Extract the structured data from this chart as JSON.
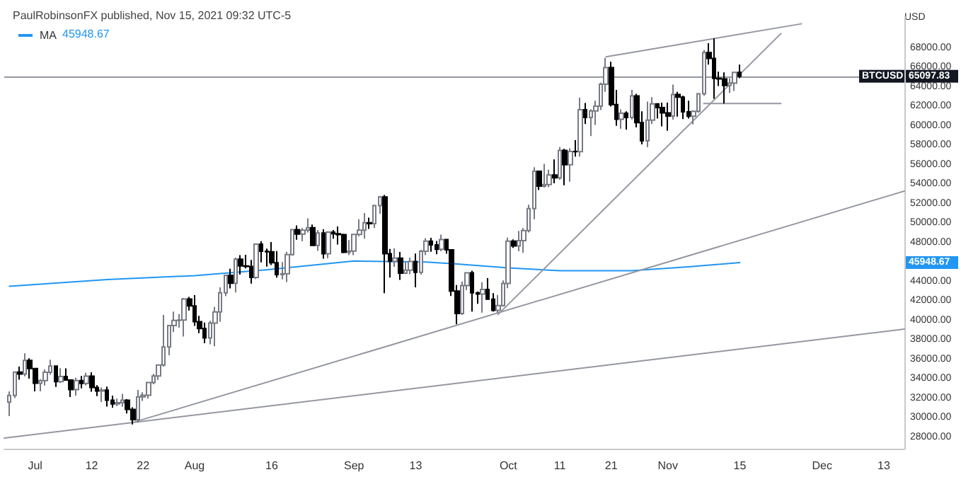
{
  "chart_data": {
    "type": "candlestick",
    "title": "PaulRobinsonFX published, Nov 15, 2021 09:32 UTC-5",
    "ylabel": "USD",
    "colors": [
      "#ffffff",
      "#ffffff",
      "#000000",
      "#ffffff",
      "#000000",
      "#000000",
      "#ffffff",
      "#ffffff",
      "#ffffff",
      "#000000",
      "#ffffff",
      "#000000",
      "#000000",
      "#ffffff",
      "#000000",
      "#ffffff",
      "#000000",
      "#000000",
      "#ffffff",
      "#000000",
      "#000000",
      "#ffffff",
      "#ffffff",
      "#000000",
      "#000000",
      "#ffffff",
      "#ffffff",
      "#ffffff",
      "#ffffff",
      "#ffffff",
      "#ffffff",
      "#ffffff",
      "#ffffff",
      "#ffffff",
      "#ffffff",
      "#000000",
      "#000000",
      "#000000",
      "#000000",
      "#ffffff",
      "#ffffff",
      "#ffffff",
      "#ffffff",
      "#000000",
      "#ffffff",
      "#000000",
      "#000000",
      "#000000",
      "#ffffff",
      "#000000",
      "#000000",
      "#000000",
      "#000000",
      "#ffffff",
      "#ffffff",
      "#ffffff",
      "#000000",
      "#ffffff",
      "#ffffff",
      "#000000",
      "#ffffff",
      "#000000",
      "#ffffff",
      "#000000",
      "#000000",
      "#000000",
      "#ffffff",
      "#ffffff",
      "#ffffff",
      "#ffffff",
      "#000000",
      "#ffffff",
      "#ffffff",
      "#000000",
      "#000000",
      "#ffffff",
      "#000000",
      "#ffffff",
      "#ffffff",
      "#000000",
      "#ffffff",
      "#ffffff",
      "#000000",
      "#000000",
      "#ffffff",
      "#000000",
      "#000000",
      "#000000",
      "#ffffff",
      "#ffffff",
      "#000000",
      "#000000",
      "#ffffff",
      "#000000",
      "#000000",
      "#ffffff",
      "#ffffff",
      "#ffffff",
      "#000000",
      "#ffffff",
      "#ffffff",
      "#ffffff",
      "#ffffff",
      "#000000",
      "#ffffff",
      "#ffffff",
      "#000000",
      "#ffffff",
      "#000000",
      "#ffffff",
      "#000000",
      "#ffffff",
      "#000000",
      "#ffffff",
      "#ffffff",
      "#ffffff",
      "#ffffff",
      "#000000",
      "#000000",
      "#ffffff",
      "#000000",
      "#ffffff",
      "#000000",
      "#000000",
      "#ffffff",
      "#ffffff",
      "#000000",
      "#000000",
      "#000000",
      "#ffffff",
      "#000000",
      "#000000",
      "#000000",
      "#ffffff",
      "#ffffff",
      "#ffffff",
      "#000000",
      "#000000",
      "#000000",
      "#000000",
      "#ffffff",
      "#ffffff",
      "#000000"
    ],
    "x": [
      "2021-06-26",
      "2021-06-27",
      "2021-06-28",
      "2021-06-29",
      "2021-06-30",
      "2021-07-01",
      "2021-07-02",
      "2021-07-03",
      "2021-07-04",
      "2021-07-05",
      "2021-07-06",
      "2021-07-07",
      "2021-07-08",
      "2021-07-09",
      "2021-07-10",
      "2021-07-11",
      "2021-07-12",
      "2021-07-13",
      "2021-07-14",
      "2021-07-15",
      "2021-07-16",
      "2021-07-17",
      "2021-07-18",
      "2021-07-19",
      "2021-07-20",
      "2021-07-21",
      "2021-07-22",
      "2021-07-23",
      "2021-07-24",
      "2021-07-25",
      "2021-07-26",
      "2021-07-27",
      "2021-07-28",
      "2021-07-29",
      "2021-07-30",
      "2021-07-31",
      "2021-08-01",
      "2021-08-02",
      "2021-08-03",
      "2021-08-04",
      "2021-08-05",
      "2021-08-06",
      "2021-08-07",
      "2021-08-08",
      "2021-08-09",
      "2021-08-10",
      "2021-08-11",
      "2021-08-12",
      "2021-08-13",
      "2021-08-14",
      "2021-08-15",
      "2021-08-16",
      "2021-08-17",
      "2021-08-18",
      "2021-08-19",
      "2021-08-20",
      "2021-08-21",
      "2021-08-22",
      "2021-08-23",
      "2021-08-24",
      "2021-08-25",
      "2021-08-26",
      "2021-08-27",
      "2021-08-28",
      "2021-08-29",
      "2021-08-30",
      "2021-08-31",
      "2021-09-01",
      "2021-09-02",
      "2021-09-03",
      "2021-09-04",
      "2021-09-05",
      "2021-09-06",
      "2021-09-07",
      "2021-09-08",
      "2021-09-09",
      "2021-09-10",
      "2021-09-11",
      "2021-09-12",
      "2021-09-13",
      "2021-09-14",
      "2021-09-15",
      "2021-09-16",
      "2021-09-17",
      "2021-09-18",
      "2021-09-19",
      "2021-09-20",
      "2021-09-21",
      "2021-09-22",
      "2021-09-23",
      "2021-09-24",
      "2021-09-25",
      "2021-09-26",
      "2021-09-27",
      "2021-09-28",
      "2021-09-29",
      "2021-09-30",
      "2021-10-01",
      "2021-10-02",
      "2021-10-03",
      "2021-10-04",
      "2021-10-05",
      "2021-10-06",
      "2021-10-07",
      "2021-10-08",
      "2021-10-09",
      "2021-10-10",
      "2021-10-11",
      "2021-10-12",
      "2021-10-13",
      "2021-10-14",
      "2021-10-15",
      "2021-10-16",
      "2021-10-17",
      "2021-10-18",
      "2021-10-19",
      "2021-10-20",
      "2021-10-21",
      "2021-10-22",
      "2021-10-23",
      "2021-10-24",
      "2021-10-25",
      "2021-10-26",
      "2021-10-27",
      "2021-10-28",
      "2021-10-29",
      "2021-10-30",
      "2021-10-31",
      "2021-11-01",
      "2021-11-02",
      "2021-11-03",
      "2021-11-04",
      "2021-11-05",
      "2021-11-06",
      "2021-11-07",
      "2021-11-08",
      "2021-11-09",
      "2021-11-10",
      "2021-11-11",
      "2021-11-12",
      "2021-11-13",
      "2021-11-14",
      "2021-11-15"
    ],
    "ohlc": [
      [
        31590,
        32700,
        30150,
        32270
      ],
      [
        32270,
        34700,
        32000,
        34680
      ],
      [
        34680,
        35250,
        33900,
        34480
      ],
      [
        34480,
        36600,
        34250,
        35880
      ],
      [
        35880,
        36100,
        34000,
        35040
      ],
      [
        35040,
        35050,
        32700,
        33540
      ],
      [
        33540,
        33950,
        32700,
        33800
      ],
      [
        33800,
        34950,
        33300,
        34660
      ],
      [
        34660,
        35950,
        34400,
        35300
      ],
      [
        35300,
        35300,
        33150,
        33690
      ],
      [
        33690,
        35080,
        33550,
        34230
      ],
      [
        34230,
        35060,
        33780,
        33860
      ],
      [
        33860,
        33920,
        32110,
        32870
      ],
      [
        32870,
        34100,
        32260,
        33810
      ],
      [
        33810,
        34270,
        33010,
        33510
      ],
      [
        33510,
        34600,
        33320,
        34260
      ],
      [
        34260,
        34660,
        32660,
        33090
      ],
      [
        33090,
        33340,
        32210,
        32730
      ],
      [
        32730,
        33100,
        31600,
        32820
      ],
      [
        32820,
        33180,
        31130,
        31780
      ],
      [
        31780,
        32250,
        31030,
        31400
      ],
      [
        31400,
        31950,
        31170,
        31530
      ],
      [
        31530,
        32440,
        31110,
        31780
      ],
      [
        31780,
        31890,
        30420,
        30840
      ],
      [
        30840,
        31050,
        29300,
        29790
      ],
      [
        29790,
        32850,
        29500,
        32130
      ],
      [
        32130,
        32600,
        31710,
        32290
      ],
      [
        32290,
        33610,
        31950,
        33600
      ],
      [
        33600,
        34490,
        33430,
        34280
      ],
      [
        34280,
        35400,
        33870,
        35400
      ],
      [
        35400,
        40550,
        35250,
        37260
      ],
      [
        37260,
        39520,
        36400,
        39460
      ],
      [
        39460,
        40900,
        38800,
        40000
      ],
      [
        40000,
        40640,
        39240,
        40030
      ],
      [
        40030,
        42300,
        38330,
        42200
      ],
      [
        42200,
        42420,
        41020,
        41490
      ],
      [
        41490,
        42600,
        39430,
        39860
      ],
      [
        39860,
        40460,
        38690,
        39150
      ],
      [
        39150,
        39780,
        37650,
        38200
      ],
      [
        38200,
        39960,
        37540,
        39720
      ],
      [
        39720,
        41400,
        37330,
        40860
      ],
      [
        40860,
        43390,
        39850,
        42830
      ],
      [
        42830,
        44700,
        42480,
        44630
      ],
      [
        44630,
        45310,
        43280,
        43820
      ],
      [
        43820,
        46460,
        42860,
        46280
      ],
      [
        46280,
        46700,
        44700,
        45600
      ],
      [
        45600,
        46740,
        45350,
        45550
      ],
      [
        45550,
        46210,
        43770,
        44420
      ],
      [
        44420,
        47900,
        44250,
        47830
      ],
      [
        47830,
        48150,
        45960,
        47100
      ],
      [
        47100,
        47380,
        45520,
        47050
      ],
      [
        47050,
        48050,
        45680,
        45930
      ],
      [
        45930,
        47120,
        44400,
        44700
      ],
      [
        44700,
        46000,
        44220,
        44800
      ],
      [
        44800,
        47050,
        43950,
        46760
      ],
      [
        46760,
        49380,
        46650,
        49330
      ],
      [
        49330,
        49760,
        48290,
        48880
      ],
      [
        48880,
        49500,
        48120,
        49280
      ],
      [
        49280,
        50500,
        49030,
        49520
      ],
      [
        49520,
        49860,
        47630,
        47700
      ],
      [
        47700,
        49300,
        47150,
        48990
      ],
      [
        48990,
        49370,
        46350,
        46850
      ],
      [
        46850,
        49170,
        46400,
        49080
      ],
      [
        49080,
        49300,
        48400,
        48900
      ],
      [
        48900,
        49650,
        47800,
        48810
      ],
      [
        48810,
        48910,
        46900,
        46990
      ],
      [
        46990,
        48250,
        46700,
        47130
      ],
      [
        47130,
        48840,
        46700,
        48830
      ],
      [
        48830,
        50400,
        48650,
        49280
      ],
      [
        49280,
        51030,
        48400,
        50040
      ],
      [
        50040,
        50560,
        49400,
        49940
      ],
      [
        49940,
        51900,
        49500,
        51800
      ],
      [
        51800,
        52780,
        50970,
        52700
      ],
      [
        52700,
        52900,
        42800,
        46860
      ],
      [
        46860,
        47350,
        44400,
        46070
      ],
      [
        46070,
        47400,
        45500,
        46400
      ],
      [
        46400,
        47030,
        44160,
        44850
      ],
      [
        44850,
        45980,
        44760,
        45160
      ],
      [
        45160,
        46460,
        44740,
        46050
      ],
      [
        46050,
        46880,
        43400,
        44950
      ],
      [
        44950,
        47250,
        44700,
        47110
      ],
      [
        47110,
        48450,
        46700,
        48140
      ],
      [
        48140,
        48490,
        47050,
        47760
      ],
      [
        47760,
        48170,
        46800,
        47300
      ],
      [
        47300,
        48810,
        47100,
        48300
      ],
      [
        48300,
        48370,
        46850,
        47250
      ],
      [
        47250,
        47330,
        42500,
        43010
      ],
      [
        43010,
        43640,
        39600,
        40700
      ],
      [
        40700,
        44000,
        40560,
        43570
      ],
      [
        43570,
        44960,
        43100,
        44890
      ],
      [
        44890,
        45100,
        40900,
        42830
      ],
      [
        42830,
        42960,
        41700,
        42700
      ],
      [
        42700,
        43920,
        40800,
        43180
      ],
      [
        43180,
        44350,
        42100,
        42170
      ],
      [
        42170,
        42790,
        40900,
        41030
      ],
      [
        41030,
        42610,
        40750,
        41520
      ],
      [
        41520,
        44100,
        41420,
        43790
      ],
      [
        43790,
        48500,
        43300,
        48140
      ],
      [
        48140,
        48330,
        47450,
        47660
      ],
      [
        47660,
        49200,
        47100,
        48200
      ],
      [
        48200,
        49500,
        46950,
        49240
      ],
      [
        49240,
        51900,
        49030,
        51490
      ],
      [
        51490,
        55750,
        50400,
        55340
      ],
      [
        55340,
        55340,
        53400,
        53800
      ],
      [
        53800,
        56100,
        53660,
        53970
      ],
      [
        53970,
        55500,
        53700,
        54950
      ],
      [
        54950,
        56550,
        54100,
        54660
      ],
      [
        54660,
        57820,
        54450,
        57480
      ],
      [
        57480,
        57650,
        53900,
        56000
      ],
      [
        56000,
        57700,
        54250,
        57370
      ],
      [
        57370,
        58530,
        56850,
        57350
      ],
      [
        57350,
        62900,
        56850,
        61670
      ],
      [
        61670,
        62350,
        60200,
        60870
      ],
      [
        60870,
        61700,
        58950,
        61530
      ],
      [
        61530,
        62600,
        60100,
        62030
      ],
      [
        62030,
        64450,
        61620,
        64280
      ],
      [
        64280,
        66990,
        63500,
        66000
      ],
      [
        66000,
        66600,
        62000,
        62200
      ],
      [
        62200,
        63700,
        60000,
        60690
      ],
      [
        60690,
        61700,
        59700,
        61300
      ],
      [
        61300,
        61500,
        59600,
        60870
      ],
      [
        60870,
        63700,
        60670,
        63080
      ],
      [
        63080,
        63300,
        59850,
        60330
      ],
      [
        60330,
        61500,
        58100,
        58460
      ],
      [
        58460,
        62500,
        57800,
        60600
      ],
      [
        60600,
        62950,
        60200,
        62270
      ],
      [
        62270,
        62300,
        60750,
        61880
      ],
      [
        61880,
        62400,
        59950,
        61340
      ],
      [
        61340,
        62400,
        59500,
        61010
      ],
      [
        61010,
        64250,
        60650,
        63230
      ],
      [
        63230,
        63500,
        60950,
        62950
      ],
      [
        62950,
        63100,
        60700,
        61440
      ],
      [
        61440,
        62600,
        60750,
        61000
      ],
      [
        61000,
        61600,
        60150,
        61510
      ],
      [
        61510,
        63300,
        61350,
        63300
      ],
      [
        63300,
        67800,
        63100,
        67550
      ],
      [
        67550,
        68500,
        66300,
        66940
      ],
      [
        66940,
        69000,
        62800,
        64880
      ],
      [
        64880,
        65580,
        64100,
        64830
      ],
      [
        64830,
        65500,
        62300,
        64150
      ],
      [
        64150,
        64900,
        63400,
        64400
      ],
      [
        64400,
        65500,
        63600,
        65500
      ],
      [
        65500,
        66300,
        64900,
        65097.83
      ]
    ],
    "series": [
      {
        "name": "MA",
        "type": "line",
        "color": "#2196f3",
        "x": [
          "2021-06-26",
          "2021-07-15",
          "2021-08-01",
          "2021-08-15",
          "2021-09-01",
          "2021-09-15",
          "2021-09-21",
          "2021-10-01",
          "2021-10-11",
          "2021-10-25",
          "2021-11-05",
          "2021-11-15"
        ],
        "values": [
          43500,
          44200,
          44600,
          45200,
          46100,
          46000,
          45800,
          45400,
          45100,
          45100,
          45500,
          45948.67
        ]
      },
      {
        "type": "line",
        "color": "#9598a1",
        "x": [
          "2021-06-25",
          "2021-12-17"
        ],
        "values": [
          27900,
          39100
        ]
      },
      {
        "type": "line",
        "color": "#9598a1",
        "x": [
          "2021-07-20",
          "2021-12-17"
        ],
        "values": [
          29500,
          53300
        ]
      },
      {
        "type": "line",
        "color": "#9598a1",
        "x": [
          "2021-09-29",
          "2021-11-23"
        ],
        "values": [
          40600,
          69500
        ]
      },
      {
        "type": "line",
        "color": "#9598a1",
        "x": [
          "2021-10-20",
          "2021-11-27"
        ],
        "values": [
          67100,
          70500
        ]
      },
      {
        "type": "line",
        "color": "#9598a1",
        "x": [
          "2021-11-08",
          "2021-11-23"
        ],
        "values": [
          62300,
          62300
        ]
      }
    ],
    "ref_lines": [
      {
        "axis": "y",
        "value": 65097.83,
        "label": "BTCUSD",
        "color": "#9598a1"
      }
    ],
    "annotations": [
      "45948.67",
      {
        "text": "65097.83",
        "x": "2021-12-17",
        "y": 65097.83
      }
    ],
    "xlim": [
      "2021-06-25",
      "2021-12-17"
    ],
    "xticks": [
      {
        "value": "2021-07-01",
        "label": "Jul"
      },
      {
        "value": "2021-07-12",
        "label": "12"
      },
      {
        "value": "2021-07-22",
        "label": "22"
      },
      {
        "value": "2021-08-01",
        "label": "Aug"
      },
      {
        "value": "2021-08-16",
        "label": "16"
      },
      {
        "value": "2021-09-01",
        "label": "Sep"
      },
      {
        "value": "2021-09-13",
        "label": "13"
      },
      {
        "value": "2021-10-01",
        "label": "Oct"
      },
      {
        "value": "2021-10-11",
        "label": "11"
      },
      {
        "value": "2021-10-21",
        "label": "21"
      },
      {
        "value": "2021-11-01",
        "label": "Nov"
      },
      {
        "value": "2021-11-15",
        "label": "15"
      },
      {
        "value": "2021-12-01",
        "label": "Dec"
      },
      {
        "value": "2021-12-13",
        "label": "13"
      }
    ],
    "ylim": [
      26800,
      71200
    ],
    "yticks": [
      {
        "value": 28000,
        "label": "28000.00"
      },
      {
        "value": 30000,
        "label": "30000.00"
      },
      {
        "value": 32000,
        "label": "32000.00"
      },
      {
        "value": 34000,
        "label": "34000.00"
      },
      {
        "value": 36000,
        "label": "36000.00"
      },
      {
        "value": 38000,
        "label": "38000.00"
      },
      {
        "value": 40000,
        "label": "40000.00"
      },
      {
        "value": 42000,
        "label": "42000.00"
      },
      {
        "value": 44000,
        "label": "44000.00"
      },
      {
        "value": 48000,
        "label": "48000.00"
      },
      {
        "value": 50000,
        "label": "50000.00"
      },
      {
        "value": 52000,
        "label": "52000.00"
      },
      {
        "value": 54000,
        "label": "54000.00"
      },
      {
        "value": 56000,
        "label": "56000.00"
      },
      {
        "value": 58000,
        "label": "58000.00"
      },
      {
        "value": 60000,
        "label": "60000.00"
      },
      {
        "value": 62000,
        "label": "62000.00"
      },
      {
        "value": 64000,
        "label": "64000.00"
      },
      {
        "value": 66000,
        "label": "66000.00"
      },
      {
        "value": 68000,
        "label": "68000.00"
      }
    ],
    "legend": "top left",
    "grid": false,
    "marker": "none",
    "line_style": "solid"
  }
}
